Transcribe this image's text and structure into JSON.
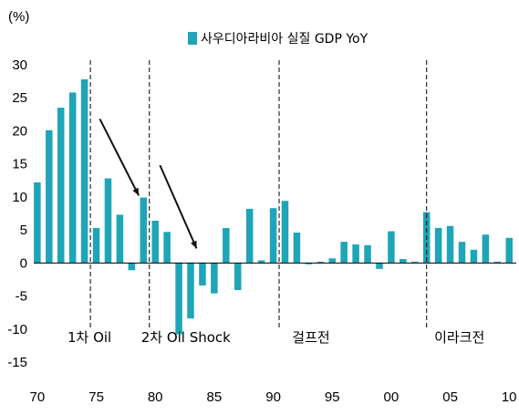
{
  "chart_data": {
    "type": "bar",
    "unit_label": "(%)",
    "legend": "사우디아라비아 실질 GDP YoY",
    "series": [
      {
        "name": "사우디아라비아 실질 GDP YoY",
        "color": "#1ea5b8",
        "x": [
          1970,
          1971,
          1972,
          1973,
          1974,
          1975,
          1976,
          1977,
          1978,
          1979,
          1980,
          1981,
          1982,
          1983,
          1984,
          1985,
          1986,
          1987,
          1988,
          1989,
          1990,
          1991,
          1992,
          1993,
          1994,
          1995,
          1996,
          1997,
          1998,
          1999,
          2000,
          2001,
          2002,
          2003,
          2004,
          2005,
          2006,
          2007,
          2008,
          2009,
          2010
        ],
        "values": [
          12.2,
          20.1,
          23.5,
          25.8,
          27.8,
          5.3,
          12.8,
          7.3,
          -1.1,
          9.9,
          6.4,
          4.7,
          -10.8,
          -8.4,
          -3.4,
          -4.6,
          5.3,
          -4.1,
          8.2,
          0.4,
          8.3,
          9.4,
          4.6,
          -0.2,
          0.2,
          0.7,
          3.2,
          2.8,
          2.7,
          -0.9,
          4.8,
          0.6,
          0.2,
          7.7,
          5.3,
          5.6,
          3.2,
          2.0,
          4.3,
          0.2,
          3.8
        ]
      }
    ],
    "x_ticks": [
      "70",
      "75",
      "80",
      "85",
      "90",
      "95",
      "00",
      "05",
      "10"
    ],
    "y_ticks": [
      "30",
      "25",
      "20",
      "15",
      "10",
      "5",
      "0",
      "-5",
      "-10",
      "-15"
    ],
    "ylim": [
      -15,
      30
    ],
    "xlim": [
      1969.7,
      2010.6
    ],
    "events": [
      {
        "label": "1차 Oil",
        "year": 1974.5
      },
      {
        "label": "2차 Oil Shock",
        "year": 1979.5
      },
      {
        "label": "걸프전",
        "year": 1990.5
      },
      {
        "label": "이라크전",
        "year": 2003.0
      }
    ],
    "arrows": [
      {
        "from": [
          1975.3,
          21.8
        ],
        "to": [
          1978.6,
          10.2
        ]
      },
      {
        "from": [
          1980.4,
          14.8
        ],
        "to": [
          1983.5,
          2.2
        ]
      }
    ],
    "grid": false,
    "legend_position": "top"
  }
}
